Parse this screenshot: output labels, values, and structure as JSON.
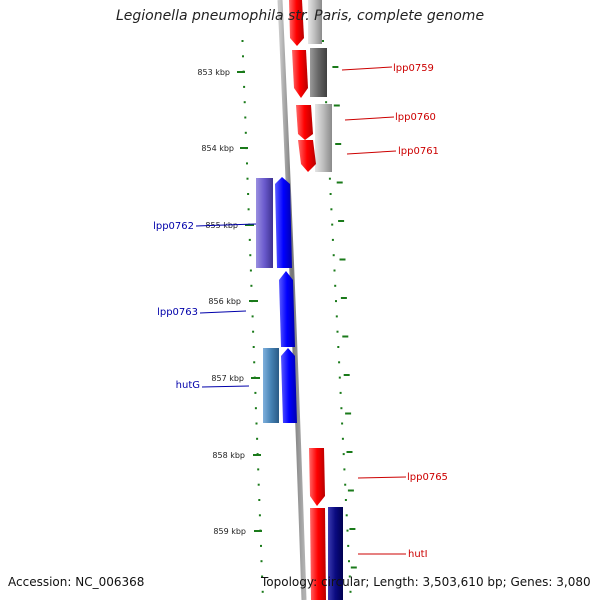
{
  "title": "Legionella pneumophila str. Paris, complete genome",
  "footer": {
    "accession": "Accession: NC_006368",
    "summary": "Topology: circular; Length: 3,503,610 bp; Genes: 3,080"
  },
  "axis": {
    "ticks": [
      {
        "label": "853 kbp"
      },
      {
        "label": "854 kbp"
      },
      {
        "label": "855 kbp"
      },
      {
        "label": "856 kbp"
      },
      {
        "label": "857 kbp"
      },
      {
        "label": "858 kbp"
      },
      {
        "label": "859 kbp"
      }
    ]
  },
  "genes": [
    {
      "label": "lpp0759"
    },
    {
      "label": "lpp0760"
    },
    {
      "label": "lpp0761"
    },
    {
      "label": "lpp0762"
    },
    {
      "label": "lpp0763"
    },
    {
      "label": "hutG"
    },
    {
      "label": "lpp0765"
    },
    {
      "label": "hutI"
    }
  ],
  "colors": {
    "forward_gene": "#ff0000",
    "reverse_gene": "#0000ff",
    "backbone": "#888888",
    "tick": "#1a7a1a",
    "forward_label": "#cc0000",
    "reverse_label": "#0000aa"
  }
}
